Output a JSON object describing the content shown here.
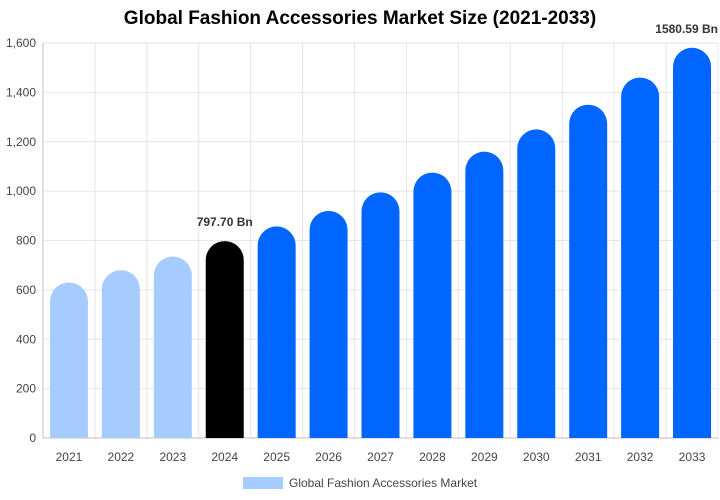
{
  "chart_data": {
    "type": "bar",
    "title": "Global Fashion Accessories Market Size (2021-2033)",
    "xlabel": "",
    "ylabel": "",
    "ylim": [
      0,
      1600
    ],
    "yticks": [
      0,
      200,
      400,
      600,
      800,
      1000,
      1200,
      1400,
      1600
    ],
    "ytick_labels": [
      "0",
      "200",
      "400",
      "600",
      "800",
      "1,000",
      "1,200",
      "1,400",
      "1,600"
    ],
    "grid": true,
    "legend_position": "bottom",
    "categories": [
      "2021",
      "2022",
      "2023",
      "2024",
      "2025",
      "2026",
      "2027",
      "2028",
      "2029",
      "2030",
      "2031",
      "2032",
      "2033"
    ],
    "series": [
      {
        "name": "Global Fashion Accessories Market",
        "values": [
          630,
          680,
          735,
          797.7,
          857,
          920,
          995,
          1075,
          1160,
          1250,
          1350,
          1460,
          1580.59
        ]
      }
    ],
    "bar_colors": [
      "#a6ccff",
      "#a6ccff",
      "#a6ccff",
      "#000000",
      "#0066ff",
      "#0066ff",
      "#0066ff",
      "#0066ff",
      "#0066ff",
      "#0066ff",
      "#0066ff",
      "#0066ff",
      "#0066ff"
    ],
    "legend_color": "#a6ccff",
    "annotations": [
      {
        "category": "2024",
        "text": "797.70 Bn"
      },
      {
        "category": "2033",
        "text": "1580.59 Bn"
      }
    ]
  }
}
